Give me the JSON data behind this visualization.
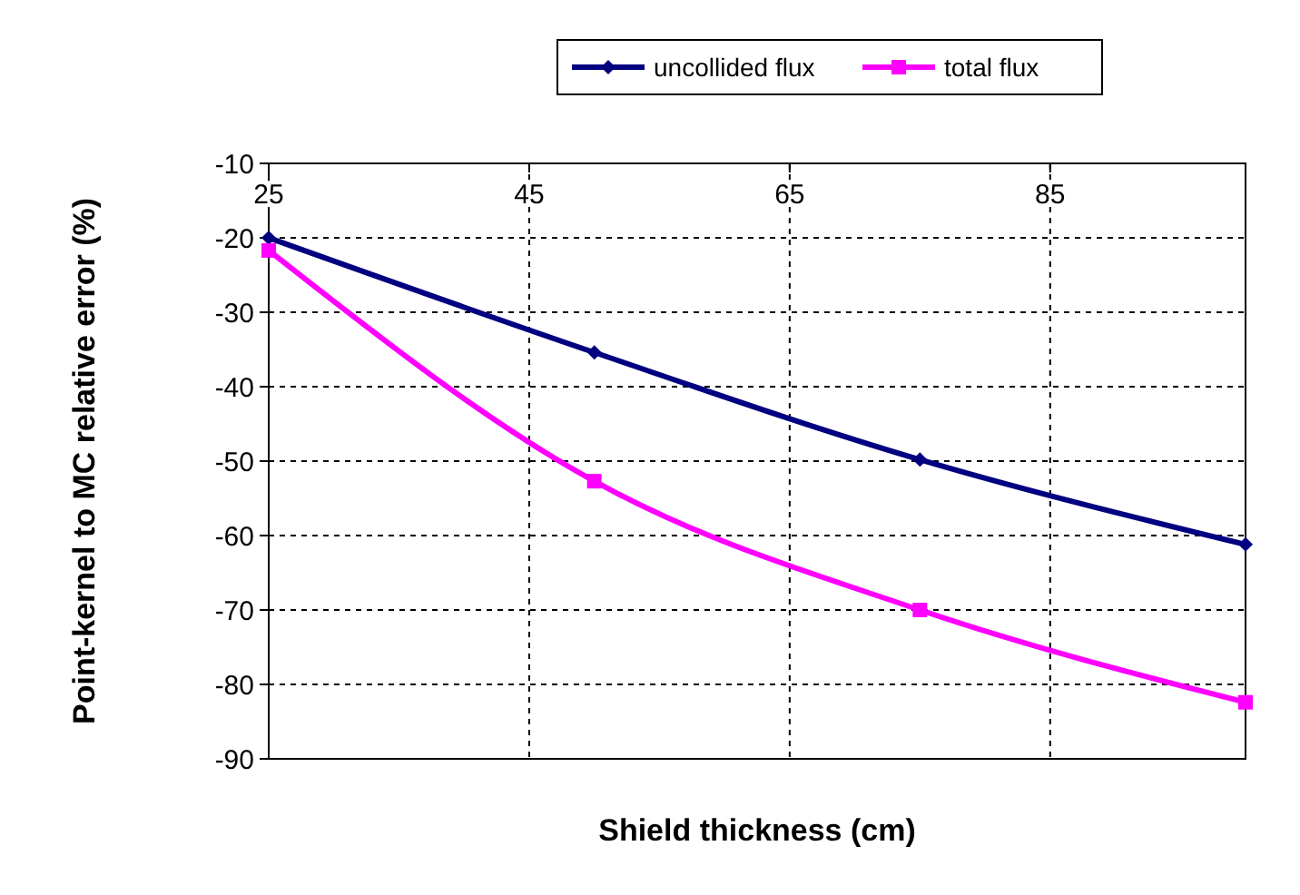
{
  "chart_data": {
    "type": "line",
    "xlabel": "Shield thickness  (cm)",
    "ylabel": "Point-kernel to MC relative error (%)",
    "x": [
      25,
      50,
      75,
      100
    ],
    "series": [
      {
        "name": "uncollided flux",
        "color": "#000080",
        "values": [
          -20,
          -35.4,
          -49.8,
          -61.2
        ],
        "marker": "diamond"
      },
      {
        "name": "total flux",
        "color": "#ff00ff",
        "values": [
          -21.7,
          -52.7,
          -70,
          -82.4
        ],
        "marker": "square"
      }
    ],
    "xlim": [
      25,
      100
    ],
    "xticks": [
      25,
      45,
      65,
      85
    ],
    "ylim": [
      -90,
      -10
    ],
    "yticks": [
      -90,
      -80,
      -70,
      -60,
      -50,
      -40,
      -30,
      -20,
      -10
    ],
    "grid": true,
    "legend": "top",
    "line_style": "solid"
  }
}
